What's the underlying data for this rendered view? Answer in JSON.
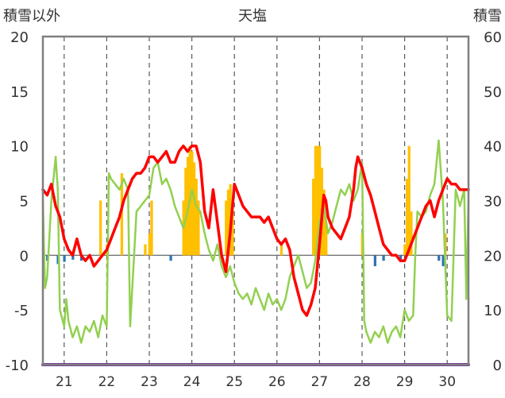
{
  "chart_data": {
    "type": "line",
    "title": "天塩",
    "left_axis_label": "積雪以外",
    "right_axis_label": "積雪",
    "y_left": {
      "min": -10,
      "max": 20,
      "ticks": [
        "20",
        "15",
        "10",
        "5",
        "0",
        "-5",
        "-10"
      ]
    },
    "y_right": {
      "min": 0,
      "max": 60,
      "ticks": [
        "60",
        "50",
        "40",
        "30",
        "20",
        "10",
        "0"
      ]
    },
    "x": {
      "min": 20.5,
      "max": 30.5,
      "ticks": [
        21,
        22,
        23,
        24,
        25,
        26,
        27,
        28,
        29,
        30
      ],
      "tick_labels": [
        "21",
        "22",
        "23",
        "24",
        "25",
        "26",
        "27",
        "28",
        "29",
        "30"
      ]
    },
    "grid": {
      "vertical_dashed": true,
      "zero_line": true
    },
    "colors": {
      "temperature": "#ff0000",
      "humidity_like": "#92d050",
      "precipitation": "#ffc000",
      "negative_bars": "#2e75b6",
      "snow_depth": "#7030a0",
      "axis": "#7f7f7f",
      "grid": "#595959"
    },
    "series": [
      {
        "key": "temperature",
        "axis": "left",
        "points": [
          [
            20.5,
            6.0
          ],
          [
            20.6,
            5.5
          ],
          [
            20.7,
            6.5
          ],
          [
            20.8,
            4.5
          ],
          [
            20.9,
            3.5
          ],
          [
            21.0,
            1.5
          ],
          [
            21.1,
            0.5
          ],
          [
            21.2,
            0.0
          ],
          [
            21.3,
            1.5
          ],
          [
            21.4,
            0.0
          ],
          [
            21.5,
            -0.5
          ],
          [
            21.6,
            0.0
          ],
          [
            21.7,
            -1.0
          ],
          [
            21.8,
            -0.5
          ],
          [
            21.9,
            0.0
          ],
          [
            22.0,
            0.5
          ],
          [
            22.1,
            1.5
          ],
          [
            22.2,
            2.5
          ],
          [
            22.3,
            3.5
          ],
          [
            22.4,
            5.0
          ],
          [
            22.5,
            6.0
          ],
          [
            22.6,
            7.0
          ],
          [
            22.7,
            7.5
          ],
          [
            22.8,
            7.5
          ],
          [
            22.9,
            8.0
          ],
          [
            23.0,
            9.0
          ],
          [
            23.1,
            9.0
          ],
          [
            23.2,
            8.5
          ],
          [
            23.3,
            9.0
          ],
          [
            23.4,
            9.5
          ],
          [
            23.5,
            8.5
          ],
          [
            23.6,
            8.5
          ],
          [
            23.7,
            9.5
          ],
          [
            23.8,
            10.0
          ],
          [
            23.9,
            9.5
          ],
          [
            24.0,
            10.0
          ],
          [
            24.1,
            10.0
          ],
          [
            24.2,
            8.5
          ],
          [
            24.3,
            4.0
          ],
          [
            24.4,
            2.5
          ],
          [
            24.5,
            6.0
          ],
          [
            24.6,
            3.0
          ],
          [
            24.7,
            0.0
          ],
          [
            24.8,
            -1.5
          ],
          [
            24.9,
            2.0
          ],
          [
            25.0,
            6.5
          ],
          [
            25.1,
            5.5
          ],
          [
            25.2,
            4.5
          ],
          [
            25.3,
            4.0
          ],
          [
            25.4,
            3.5
          ],
          [
            25.5,
            3.5
          ],
          [
            25.6,
            3.5
          ],
          [
            25.7,
            3.0
          ],
          [
            25.8,
            3.5
          ],
          [
            25.9,
            2.5
          ],
          [
            26.0,
            1.5
          ],
          [
            26.1,
            1.0
          ],
          [
            26.2,
            1.5
          ],
          [
            26.3,
            0.5
          ],
          [
            26.4,
            -2.0
          ],
          [
            26.5,
            -3.5
          ],
          [
            26.6,
            -5.0
          ],
          [
            26.7,
            -5.5
          ],
          [
            26.8,
            -4.5
          ],
          [
            26.9,
            -3.0
          ],
          [
            27.0,
            1.0
          ],
          [
            27.1,
            5.5
          ],
          [
            27.15,
            5.0
          ],
          [
            27.2,
            3.5
          ],
          [
            27.3,
            2.5
          ],
          [
            27.4,
            2.0
          ],
          [
            27.5,
            1.5
          ],
          [
            27.6,
            2.5
          ],
          [
            27.7,
            3.5
          ],
          [
            27.8,
            6.0
          ],
          [
            27.85,
            8.0
          ],
          [
            27.9,
            9.0
          ],
          [
            28.0,
            8.0
          ],
          [
            28.1,
            6.5
          ],
          [
            28.2,
            5.5
          ],
          [
            28.3,
            4.0
          ],
          [
            28.4,
            2.5
          ],
          [
            28.5,
            1.0
          ],
          [
            28.6,
            0.5
          ],
          [
            28.7,
            0.0
          ],
          [
            28.8,
            0.0
          ],
          [
            28.9,
            -0.5
          ],
          [
            29.0,
            -0.5
          ],
          [
            29.1,
            0.5
          ],
          [
            29.2,
            1.5
          ],
          [
            29.3,
            2.5
          ],
          [
            29.4,
            3.5
          ],
          [
            29.5,
            4.5
          ],
          [
            29.6,
            5.0
          ],
          [
            29.7,
            3.5
          ],
          [
            29.8,
            5.0
          ],
          [
            29.9,
            6.0
          ],
          [
            30.0,
            7.0
          ],
          [
            30.1,
            6.5
          ],
          [
            30.2,
            6.5
          ],
          [
            30.3,
            6.0
          ],
          [
            30.4,
            6.0
          ],
          [
            30.5,
            6.0
          ]
        ]
      },
      {
        "key": "humidity_like",
        "axis": "left",
        "points": [
          [
            20.5,
            5.0
          ],
          [
            20.55,
            -3.0
          ],
          [
            20.6,
            -2.0
          ],
          [
            20.7,
            5.0
          ],
          [
            20.8,
            9.0
          ],
          [
            20.85,
            6.0
          ],
          [
            20.9,
            -5.0
          ],
          [
            21.0,
            -6.5
          ],
          [
            21.05,
            -4.0
          ],
          [
            21.1,
            -6.0
          ],
          [
            21.2,
            -7.5
          ],
          [
            21.3,
            -6.5
          ],
          [
            21.4,
            -8.0
          ],
          [
            21.5,
            -6.5
          ],
          [
            21.6,
            -7.0
          ],
          [
            21.7,
            -6.0
          ],
          [
            21.8,
            -7.5
          ],
          [
            21.9,
            -5.5
          ],
          [
            22.0,
            -6.5
          ],
          [
            22.05,
            7.5
          ],
          [
            22.1,
            7.0
          ],
          [
            22.2,
            6.5
          ],
          [
            22.3,
            6.0
          ],
          [
            22.4,
            7.0
          ],
          [
            22.5,
            6.0
          ],
          [
            22.55,
            -6.5
          ],
          [
            22.6,
            -3.0
          ],
          [
            22.7,
            4.0
          ],
          [
            22.8,
            4.5
          ],
          [
            22.9,
            5.0
          ],
          [
            23.0,
            5.5
          ],
          [
            23.1,
            8.0
          ],
          [
            23.2,
            8.5
          ],
          [
            23.3,
            6.5
          ],
          [
            23.4,
            7.0
          ],
          [
            23.5,
            6.0
          ],
          [
            23.6,
            4.5
          ],
          [
            23.7,
            3.5
          ],
          [
            23.8,
            2.5
          ],
          [
            23.9,
            4.0
          ],
          [
            24.0,
            6.0
          ],
          [
            24.1,
            4.5
          ],
          [
            24.2,
            4.0
          ],
          [
            24.3,
            2.0
          ],
          [
            24.4,
            0.5
          ],
          [
            24.5,
            -0.5
          ],
          [
            24.6,
            1.0
          ],
          [
            24.7,
            -1.0
          ],
          [
            24.8,
            -2.0
          ],
          [
            24.9,
            -1.0
          ],
          [
            25.0,
            -2.5
          ],
          [
            25.1,
            -3.5
          ],
          [
            25.2,
            -4.0
          ],
          [
            25.3,
            -3.5
          ],
          [
            25.4,
            -4.5
          ],
          [
            25.5,
            -3.0
          ],
          [
            25.6,
            -4.0
          ],
          [
            25.7,
            -5.0
          ],
          [
            25.8,
            -3.5
          ],
          [
            25.9,
            -4.5
          ],
          [
            26.0,
            -4.0
          ],
          [
            26.1,
            -5.0
          ],
          [
            26.2,
            -4.0
          ],
          [
            26.3,
            -2.0
          ],
          [
            26.4,
            -1.0
          ],
          [
            26.5,
            0.0
          ],
          [
            26.6,
            -1.5
          ],
          [
            26.7,
            -3.0
          ],
          [
            26.8,
            -2.5
          ],
          [
            26.9,
            -0.5
          ],
          [
            27.0,
            3.0
          ],
          [
            27.1,
            4.5
          ],
          [
            27.2,
            2.0
          ],
          [
            27.3,
            3.0
          ],
          [
            27.4,
            4.5
          ],
          [
            27.5,
            6.0
          ],
          [
            27.6,
            5.5
          ],
          [
            27.7,
            6.5
          ],
          [
            27.8,
            5.0
          ],
          [
            27.9,
            6.0
          ],
          [
            28.0,
            8.5
          ],
          [
            28.05,
            -6.0
          ],
          [
            28.1,
            -7.0
          ],
          [
            28.2,
            -8.0
          ],
          [
            28.3,
            -7.0
          ],
          [
            28.4,
            -7.5
          ],
          [
            28.5,
            -6.5
          ],
          [
            28.6,
            -8.0
          ],
          [
            28.7,
            -7.0
          ],
          [
            28.8,
            -6.5
          ],
          [
            28.9,
            -7.5
          ],
          [
            29.0,
            -5.0
          ],
          [
            29.1,
            -6.0
          ],
          [
            29.2,
            -5.5
          ],
          [
            29.25,
            0.0
          ],
          [
            29.3,
            4.0
          ],
          [
            29.4,
            3.5
          ],
          [
            29.5,
            4.0
          ],
          [
            29.6,
            5.5
          ],
          [
            29.7,
            6.5
          ],
          [
            29.8,
            10.5
          ],
          [
            29.9,
            5.0
          ],
          [
            30.0,
            -5.5
          ],
          [
            30.1,
            -6.0
          ],
          [
            30.2,
            6.0
          ],
          [
            30.3,
            4.5
          ],
          [
            30.4,
            6.0
          ],
          [
            30.45,
            -4.0
          ],
          [
            30.5,
            5.0
          ]
        ]
      },
      {
        "key": "precipitation",
        "axis": "left",
        "bars": [
          [
            21.85,
            5.0
          ],
          [
            22.0,
            1.0
          ],
          [
            22.35,
            7.5
          ],
          [
            22.9,
            1.0
          ],
          [
            23.0,
            2.0
          ],
          [
            23.05,
            5.0
          ],
          [
            23.8,
            5.0
          ],
          [
            23.85,
            8.0
          ],
          [
            23.9,
            9.0
          ],
          [
            23.95,
            10.0
          ],
          [
            24.0,
            9.5
          ],
          [
            24.05,
            8.5
          ],
          [
            24.1,
            7.0
          ],
          [
            24.15,
            5.0
          ],
          [
            24.8,
            5.0
          ],
          [
            24.85,
            6.0
          ],
          [
            24.9,
            6.5
          ],
          [
            24.95,
            5.0
          ],
          [
            26.1,
            1.0
          ],
          [
            26.85,
            7.0
          ],
          [
            26.9,
            10.0
          ],
          [
            26.95,
            10.0
          ],
          [
            27.0,
            10.0
          ],
          [
            27.05,
            8.0
          ],
          [
            27.1,
            6.0
          ],
          [
            27.15,
            3.0
          ],
          [
            28.0,
            2.0
          ],
          [
            29.0,
            1.0
          ],
          [
            29.05,
            7.0
          ],
          [
            29.1,
            10.0
          ],
          [
            29.15,
            4.0
          ],
          [
            29.95,
            2.0
          ]
        ]
      },
      {
        "key": "negative_bars",
        "axis": "left",
        "bars": [
          [
            20.6,
            -0.5
          ],
          [
            20.85,
            -0.8
          ],
          [
            21.0,
            -0.6
          ],
          [
            21.2,
            -0.4
          ],
          [
            21.4,
            -0.5
          ],
          [
            23.5,
            -0.5
          ],
          [
            28.3,
            -1.0
          ],
          [
            28.5,
            -0.5
          ],
          [
            28.9,
            -0.5
          ],
          [
            29.8,
            -0.5
          ],
          [
            29.9,
            -1.0
          ]
        ]
      },
      {
        "key": "snow_depth",
        "axis": "right",
        "points": [
          [
            20.5,
            0
          ],
          [
            30.5,
            0
          ]
        ]
      }
    ]
  }
}
